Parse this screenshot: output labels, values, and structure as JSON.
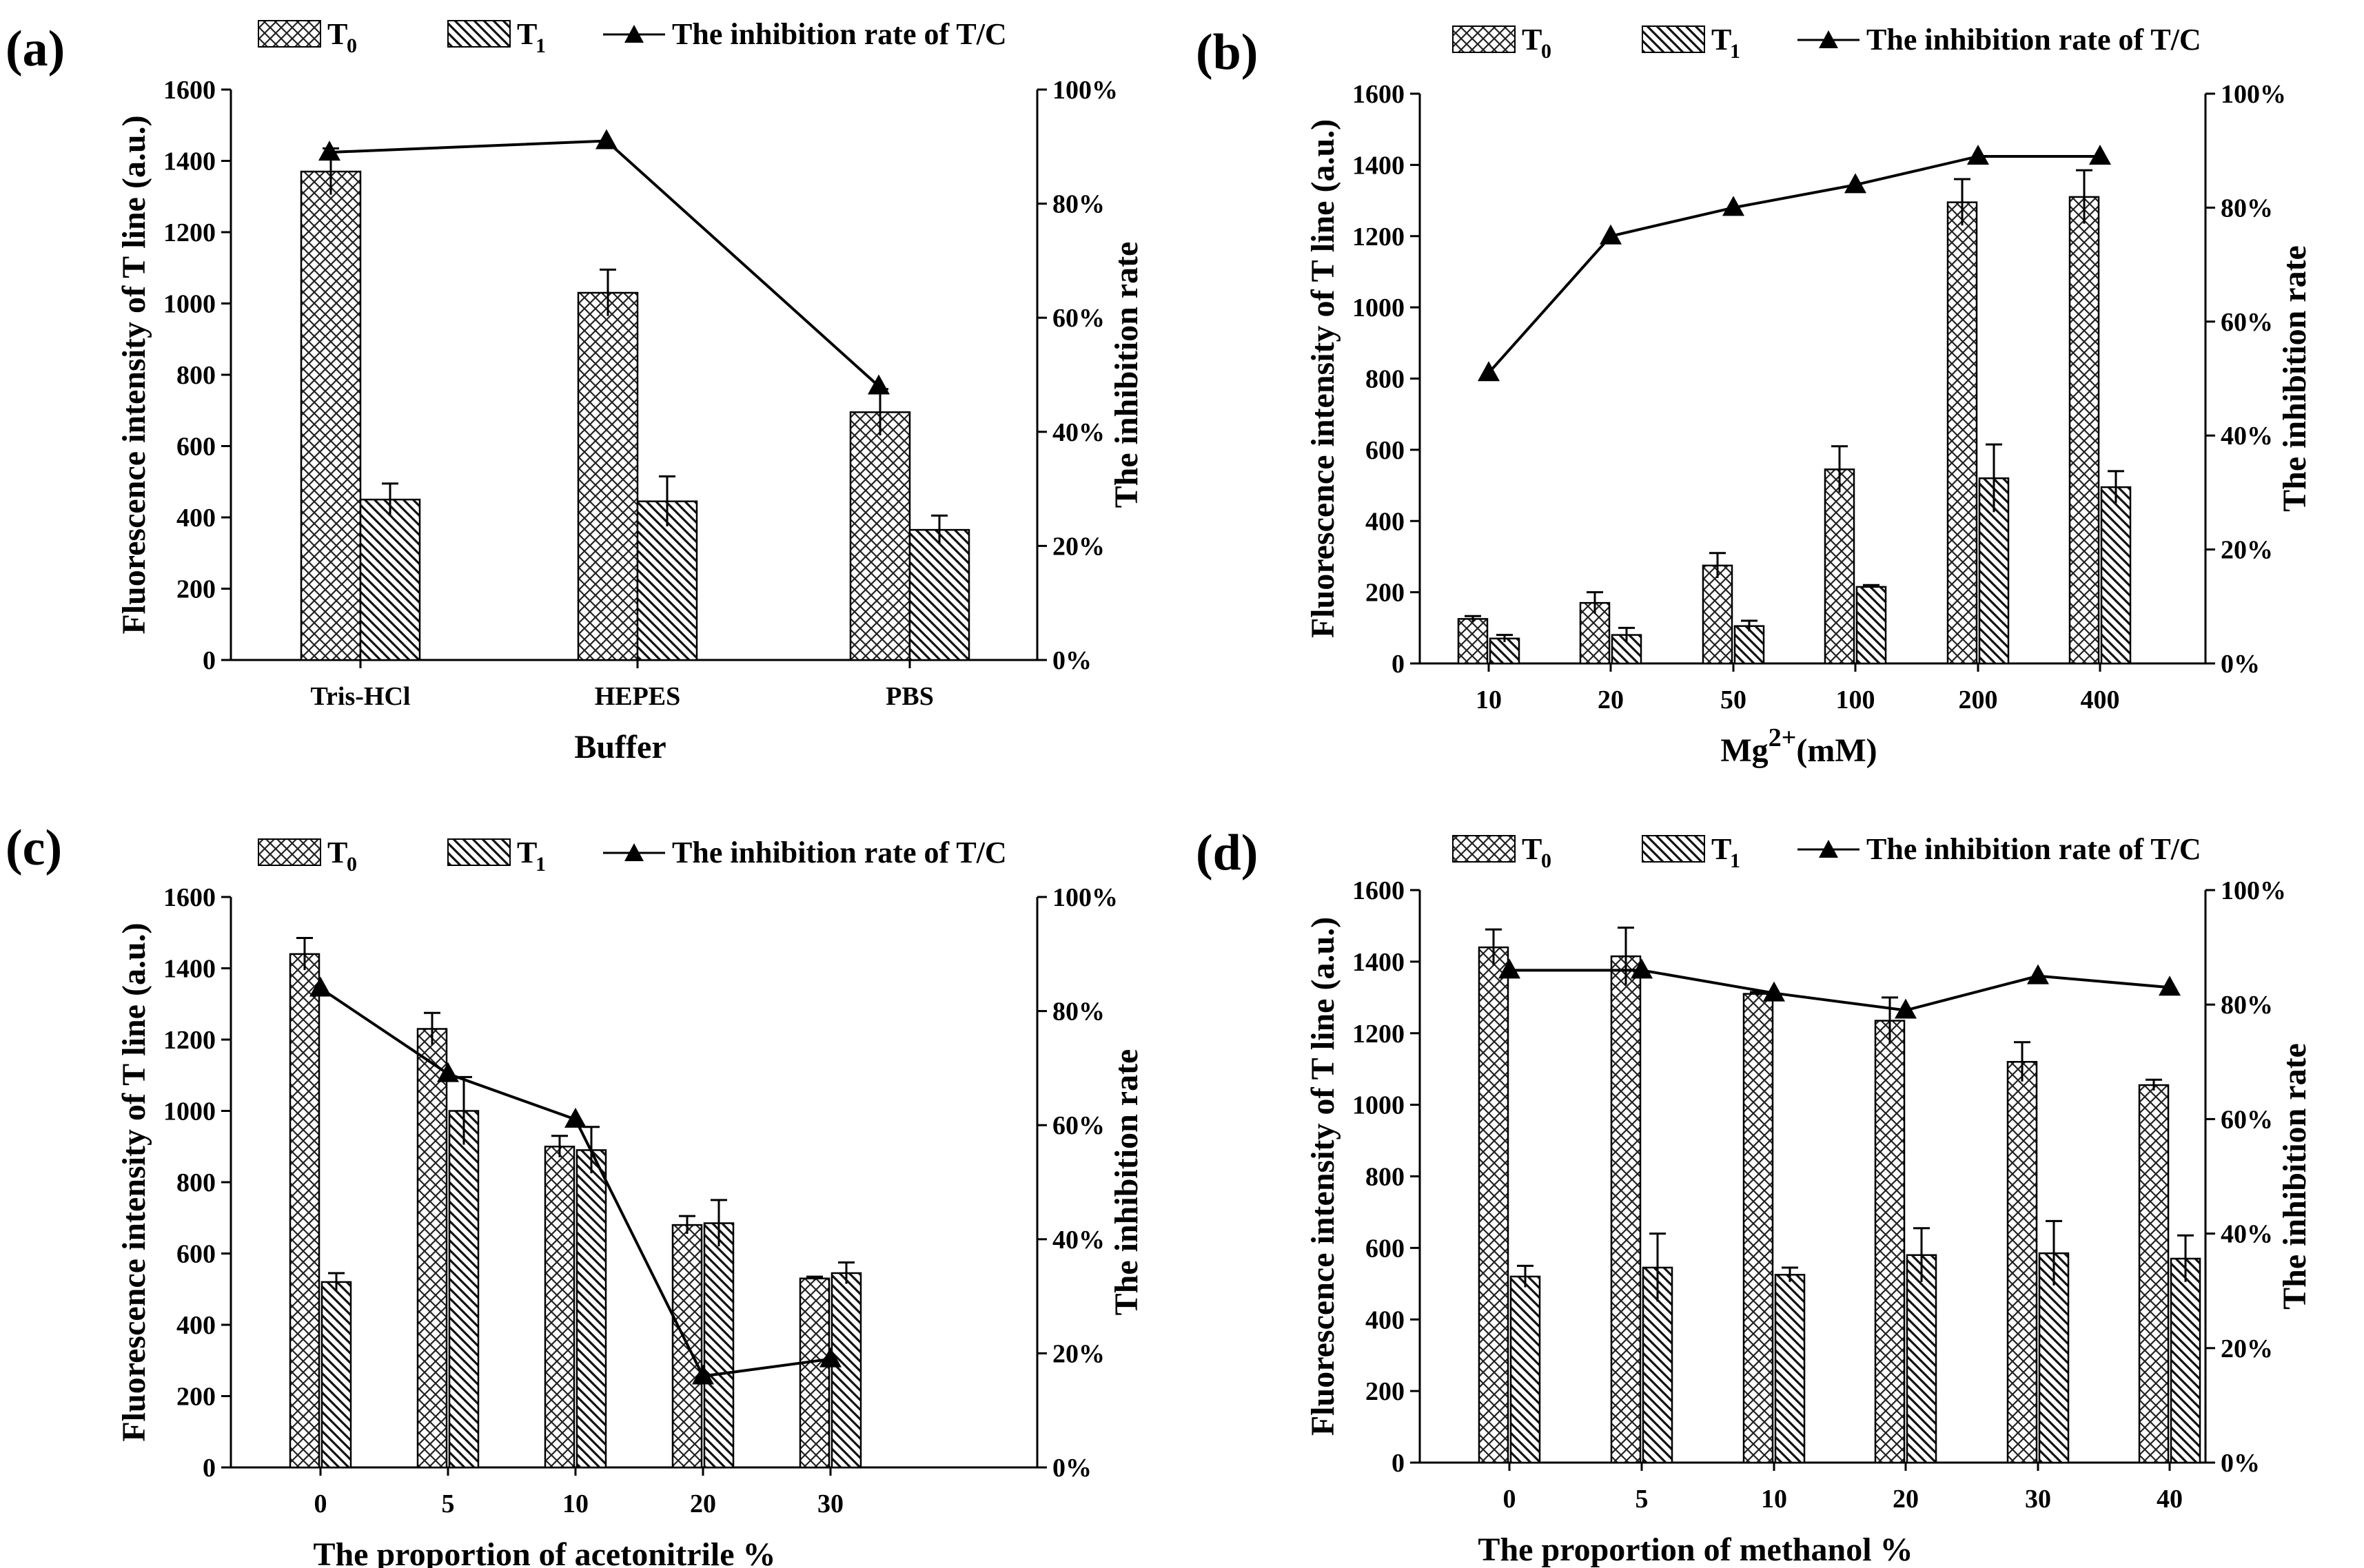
{
  "legend": {
    "t0": "T",
    "t0_sub": "0",
    "t1": "T",
    "t1_sub": "1",
    "rate": "The inhibition rate of T/C"
  },
  "colors": {
    "axis": "#000000",
    "bar_outline": "#000000",
    "bar_fill": "#ffffff",
    "hatch": "#222222"
  },
  "chart_data": [
    {
      "panel": "(a)",
      "type": "bar",
      "categories": [
        "Tris-HCl",
        "HEPES",
        "PBS"
      ],
      "xlabel": "Buffer",
      "xlabel_sup": "",
      "xlabel_tail": "",
      "ylabel": "Fluorescence intensity of T line (a.u.)",
      "y2label": "The inhibition rate",
      "ylim": [
        0,
        1600
      ],
      "yticks": [
        "0",
        "200",
        "400",
        "600",
        "800",
        "1000",
        "1200",
        "1400",
        "1600"
      ],
      "y2lim": [
        0,
        100
      ],
      "y2ticks": [
        "0%",
        "20%",
        "40%",
        "60%",
        "80%",
        "100%"
      ],
      "series": [
        {
          "name": "T0",
          "values": [
            1370,
            1030,
            695
          ],
          "errors": [
            65,
            65,
            65
          ]
        },
        {
          "name": "T1",
          "values": [
            450,
            445,
            365
          ],
          "errors": [
            45,
            70,
            40
          ]
        }
      ],
      "line": {
        "name": "The inhibition rate of T/C",
        "values": [
          89,
          91,
          48
        ]
      }
    },
    {
      "panel": "(b)",
      "type": "bar",
      "categories": [
        "10",
        "20",
        "50",
        "100",
        "200",
        "400"
      ],
      "xlabel": "Mg",
      "xlabel_sup": "2+",
      "xlabel_tail": "(mM)",
      "ylabel": "Fluorescence intensity of T line (a.u.)",
      "y2label": "The inhibition rate",
      "ylim": [
        0,
        1600
      ],
      "yticks": [
        "0",
        "200",
        "400",
        "600",
        "800",
        "1000",
        "1200",
        "1400",
        "1600"
      ],
      "y2lim": [
        0,
        100
      ],
      "y2ticks": [
        "0%",
        "20%",
        "40%",
        "60%",
        "80%",
        "100%"
      ],
      "series": [
        {
          "name": "T0",
          "values": [
            125,
            170,
            275,
            545,
            1295,
            1310
          ],
          "errors": [
            8,
            30,
            35,
            65,
            65,
            75
          ]
        },
        {
          "name": "T1",
          "values": [
            70,
            80,
            105,
            215,
            520,
            495
          ],
          "errors": [
            10,
            20,
            15,
            5,
            95,
            45
          ]
        }
      ],
      "line": {
        "name": "The inhibition rate of T/C",
        "values": [
          51,
          75,
          80,
          84,
          89,
          89
        ]
      }
    },
    {
      "panel": "(c)",
      "type": "bar",
      "categories": [
        "0",
        "5",
        "10",
        "20",
        "30"
      ],
      "xlabel": "The proportion of acetonitrile %",
      "xlabel_sup": "",
      "xlabel_tail": "",
      "ylabel": "Fluorescence intensity of T line (a.u.)",
      "y2label": "The inhibition rate",
      "ylim": [
        0,
        1600
      ],
      "yticks": [
        "0",
        "200",
        "400",
        "600",
        "800",
        "1000",
        "1200",
        "1400",
        "1600"
      ],
      "y2lim": [
        0,
        100
      ],
      "y2ticks": [
        "0%",
        "20%",
        "40%",
        "60%",
        "80%",
        "100%"
      ],
      "series": [
        {
          "name": "T0",
          "values": [
            1440,
            1230,
            900,
            680,
            530
          ],
          "errors": [
            45,
            45,
            30,
            25,
            5
          ]
        },
        {
          "name": "T1",
          "values": [
            520,
            1000,
            890,
            685,
            545
          ],
          "errors": [
            25,
            95,
            65,
            65,
            30
          ]
        }
      ],
      "line": {
        "name": "The inhibition rate of T/C",
        "values": [
          84,
          69,
          61,
          16,
          19
        ]
      }
    },
    {
      "panel": "(d)",
      "type": "bar",
      "categories": [
        "0",
        "5",
        "10",
        "20",
        "30",
        "40"
      ],
      "xlabel": "The proportion of methanol %",
      "xlabel_sup": "",
      "xlabel_tail": "",
      "ylabel": "Fluorescence intensity of T line (a.u.)",
      "y2label": "The inhibition rate",
      "ylim": [
        0,
        1600
      ],
      "yticks": [
        "0",
        "200",
        "400",
        "600",
        "800",
        "1000",
        "1200",
        "1400",
        "1600"
      ],
      "y2lim": [
        0,
        100
      ],
      "y2ticks": [
        "0%",
        "20%",
        "40%",
        "60%",
        "80%",
        "100%"
      ],
      "series": [
        {
          "name": "T0",
          "values": [
            1440,
            1415,
            1310,
            1235,
            1120,
            1055
          ],
          "errors": [
            50,
            80,
            5,
            65,
            55,
            15
          ]
        },
        {
          "name": "T1",
          "values": [
            520,
            545,
            525,
            580,
            585,
            570
          ],
          "errors": [
            30,
            95,
            20,
            75,
            90,
            65
          ]
        }
      ],
      "line": {
        "name": "The inhibition rate of T/C",
        "values": [
          86,
          86,
          82,
          79,
          85,
          83
        ]
      }
    }
  ]
}
